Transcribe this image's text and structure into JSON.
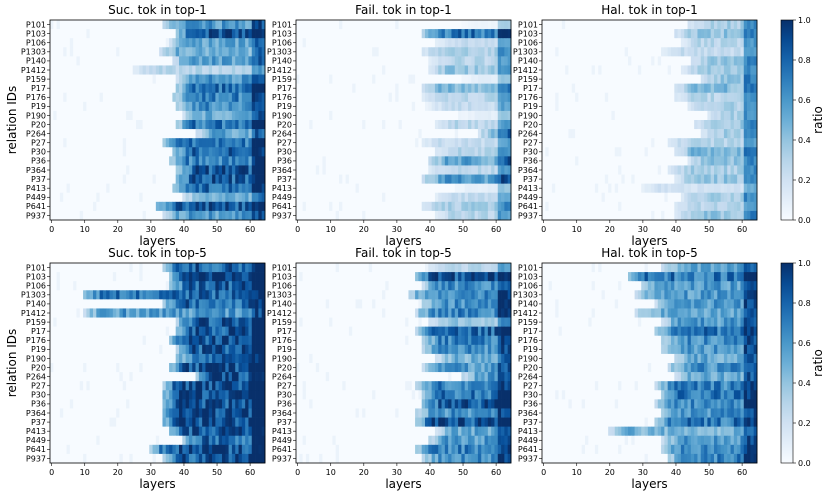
{
  "chart_data": {
    "type": "heatmap",
    "layout": {
      "rows": 2,
      "cols": 3
    },
    "colormap": "Blues",
    "colorbar": {
      "label": "ratio",
      "range": [
        0.0,
        1.0
      ],
      "ticks": [
        "0.0",
        "0.2",
        "0.4",
        "0.6",
        "0.8",
        "1.0"
      ]
    },
    "x": {
      "label": "layers",
      "range": [
        0,
        64
      ],
      "tick_values": [
        0,
        10,
        20,
        30,
        40,
        50,
        60
      ],
      "tick_labels": [
        "0",
        "10",
        "20",
        "30",
        "40",
        "50",
        "60"
      ]
    },
    "y": {
      "label": "relation IDs",
      "categories": [
        "P101",
        "P103",
        "P106",
        "P1303",
        "P140",
        "P1412",
        "P159",
        "P17",
        "P176",
        "P19",
        "P190",
        "P20",
        "P264",
        "P27",
        "P30",
        "P36",
        "P364",
        "P37",
        "P413",
        "P449",
        "P641",
        "P937"
      ]
    },
    "panels": [
      {
        "title": "Suc. tok in top-1",
        "rows": [
          {
            "onset": 34,
            "level": 0.6
          },
          {
            "onset": 38,
            "level": 0.9
          },
          {
            "onset": 36,
            "level": 0.55
          },
          {
            "onset": 33,
            "level": 0.5
          },
          {
            "onset": 37,
            "level": 0.6
          },
          {
            "onset": 25,
            "level": 0.3
          },
          {
            "onset": 38,
            "level": 0.6
          },
          {
            "onset": 38,
            "level": 0.75
          },
          {
            "onset": 37,
            "level": 0.7
          },
          {
            "onset": 38,
            "level": 0.65
          },
          {
            "onset": 40,
            "level": 0.55
          },
          {
            "onset": 38,
            "level": 0.75
          },
          {
            "onset": 44,
            "level": 0.55
          },
          {
            "onset": 34,
            "level": 0.75
          },
          {
            "onset": 37,
            "level": 0.8
          },
          {
            "onset": 36,
            "level": 0.7
          },
          {
            "onset": 38,
            "level": 0.9
          },
          {
            "onset": 38,
            "level": 0.85
          },
          {
            "onset": 37,
            "level": 0.8
          },
          {
            "onset": 40,
            "level": 0.5
          },
          {
            "onset": 32,
            "level": 0.9
          },
          {
            "onset": 34,
            "level": 0.6
          }
        ]
      },
      {
        "title": "Fail. tok in top-1",
        "rows": [
          {
            "onset": 50,
            "level": 0.05
          },
          {
            "onset": 38,
            "level": 0.75
          },
          {
            "onset": 42,
            "level": 0.25
          },
          {
            "onset": 38,
            "level": 0.35
          },
          {
            "onset": 40,
            "level": 0.3
          },
          {
            "onset": 40,
            "level": 0.4
          },
          {
            "onset": 50,
            "level": 0.1
          },
          {
            "onset": 38,
            "level": 0.45
          },
          {
            "onset": 38,
            "level": 0.3
          },
          {
            "onset": 40,
            "level": 0.25
          },
          {
            "onset": 50,
            "level": 0.1
          },
          {
            "onset": 42,
            "level": 0.3
          },
          {
            "onset": 55,
            "level": 0.5
          },
          {
            "onset": 38,
            "level": 0.25
          },
          {
            "onset": 42,
            "level": 0.3
          },
          {
            "onset": 40,
            "level": 0.55
          },
          {
            "onset": 40,
            "level": 0.3
          },
          {
            "onset": 38,
            "level": 0.6
          },
          {
            "onset": 48,
            "level": 0.1
          },
          {
            "onset": 42,
            "level": 0.25
          },
          {
            "onset": 38,
            "level": 0.35
          },
          {
            "onset": 42,
            "level": 0.3
          }
        ]
      },
      {
        "title": "Hal. tok in top-1",
        "rows": [
          {
            "onset": 44,
            "level": 0.35
          },
          {
            "onset": 40,
            "level": 0.4
          },
          {
            "onset": 42,
            "level": 0.3
          },
          {
            "onset": 36,
            "level": 0.25
          },
          {
            "onset": 45,
            "level": 0.4
          },
          {
            "onset": 42,
            "level": 0.35
          },
          {
            "onset": 48,
            "level": 0.4
          },
          {
            "onset": 40,
            "level": 0.45
          },
          {
            "onset": 40,
            "level": 0.3
          },
          {
            "onset": 44,
            "level": 0.35
          },
          {
            "onset": 50,
            "level": 0.35
          },
          {
            "onset": 46,
            "level": 0.4
          },
          {
            "onset": 48,
            "level": 0.35
          },
          {
            "onset": 38,
            "level": 0.3
          },
          {
            "onset": 40,
            "level": 0.45
          },
          {
            "onset": 44,
            "level": 0.4
          },
          {
            "onset": 38,
            "level": 0.35
          },
          {
            "onset": 40,
            "level": 0.4
          },
          {
            "onset": 30,
            "level": 0.2
          },
          {
            "onset": 42,
            "level": 0.35
          },
          {
            "onset": 40,
            "level": 0.3
          },
          {
            "onset": 40,
            "level": 0.4
          }
        ]
      },
      {
        "title": "Suc. tok in top-5",
        "rows": [
          {
            "onset": 34,
            "level": 0.85
          },
          {
            "onset": 36,
            "level": 0.95
          },
          {
            "onset": 36,
            "level": 0.85
          },
          {
            "onset": 10,
            "level": 0.8
          },
          {
            "onset": 34,
            "level": 0.8
          },
          {
            "onset": 10,
            "level": 0.6
          },
          {
            "onset": 38,
            "level": 0.85
          },
          {
            "onset": 38,
            "level": 0.9
          },
          {
            "onset": 36,
            "level": 0.9
          },
          {
            "onset": 38,
            "level": 0.85
          },
          {
            "onset": 38,
            "level": 0.8
          },
          {
            "onset": 36,
            "level": 0.9
          },
          {
            "onset": 44,
            "level": 0.9
          },
          {
            "onset": 34,
            "level": 0.95
          },
          {
            "onset": 34,
            "level": 0.95
          },
          {
            "onset": 34,
            "level": 0.9
          },
          {
            "onset": 34,
            "level": 0.95
          },
          {
            "onset": 34,
            "level": 0.95
          },
          {
            "onset": 36,
            "level": 0.9
          },
          {
            "onset": 40,
            "level": 0.8
          },
          {
            "onset": 30,
            "level": 0.9
          },
          {
            "onset": 34,
            "level": 0.85
          }
        ]
      },
      {
        "title": "Fail. tok in top-5",
        "rows": [
          {
            "onset": 40,
            "level": 0.3
          },
          {
            "onset": 36,
            "level": 0.9
          },
          {
            "onset": 38,
            "level": 0.65
          },
          {
            "onset": 34,
            "level": 0.7
          },
          {
            "onset": 38,
            "level": 0.65
          },
          {
            "onset": 36,
            "level": 0.7
          },
          {
            "onset": 40,
            "level": 0.4
          },
          {
            "onset": 36,
            "level": 0.8
          },
          {
            "onset": 38,
            "level": 0.7
          },
          {
            "onset": 38,
            "level": 0.65
          },
          {
            "onset": 42,
            "level": 0.5
          },
          {
            "onset": 38,
            "level": 0.6
          },
          {
            "onset": 50,
            "level": 0.6
          },
          {
            "onset": 36,
            "level": 0.7
          },
          {
            "onset": 38,
            "level": 0.75
          },
          {
            "onset": 38,
            "level": 0.85
          },
          {
            "onset": 36,
            "level": 0.65
          },
          {
            "onset": 36,
            "level": 0.9
          },
          {
            "onset": 42,
            "level": 0.55
          },
          {
            "onset": 40,
            "level": 0.6
          },
          {
            "onset": 36,
            "level": 0.7
          },
          {
            "onset": 38,
            "level": 0.65
          }
        ]
      },
      {
        "title": "Hal. tok in top-5",
        "rows": [
          {
            "onset": 36,
            "level": 0.55
          },
          {
            "onset": 26,
            "level": 0.75
          },
          {
            "onset": 30,
            "level": 0.6
          },
          {
            "onset": 28,
            "level": 0.6
          },
          {
            "onset": 34,
            "level": 0.6
          },
          {
            "onset": 28,
            "level": 0.55
          },
          {
            "onset": 36,
            "level": 0.6
          },
          {
            "onset": 34,
            "level": 0.75
          },
          {
            "onset": 36,
            "level": 0.65
          },
          {
            "onset": 36,
            "level": 0.6
          },
          {
            "onset": 40,
            "level": 0.55
          },
          {
            "onset": 38,
            "level": 0.65
          },
          {
            "onset": 40,
            "level": 0.55
          },
          {
            "onset": 34,
            "level": 0.7
          },
          {
            "onset": 36,
            "level": 0.75
          },
          {
            "onset": 34,
            "level": 0.7
          },
          {
            "onset": 36,
            "level": 0.65
          },
          {
            "onset": 34,
            "level": 0.75
          },
          {
            "onset": 20,
            "level": 0.5
          },
          {
            "onset": 36,
            "level": 0.6
          },
          {
            "onset": 36,
            "level": 0.65
          },
          {
            "onset": 38,
            "level": 0.7
          }
        ]
      }
    ]
  }
}
